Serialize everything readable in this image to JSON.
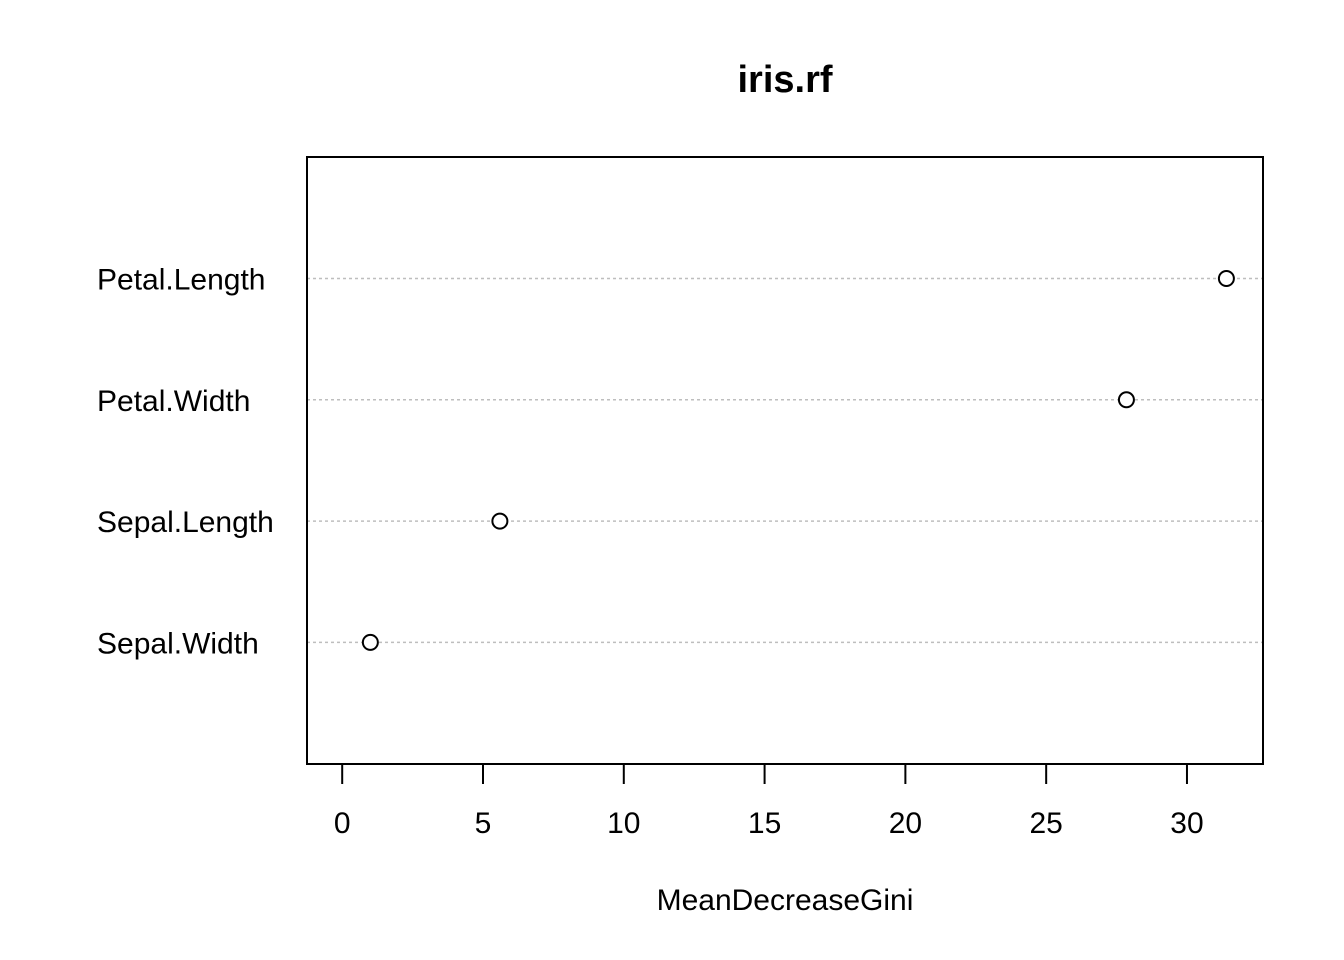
{
  "chart_data": {
    "type": "scatter",
    "title": "iris.rf",
    "xlabel": "MeanDecreaseGini",
    "ylabel": "",
    "categories": [
      "Petal.Length",
      "Petal.Width",
      "Sepal.Length",
      "Sepal.Width"
    ],
    "values": [
      31.4,
      27.85,
      5.6,
      1.0
    ],
    "xlim": [
      -1.25,
      32.7
    ],
    "xticks": [
      0,
      5,
      10,
      15,
      20,
      25,
      30
    ],
    "grid": "horizontal dotted guide lines",
    "legend": "none"
  }
}
